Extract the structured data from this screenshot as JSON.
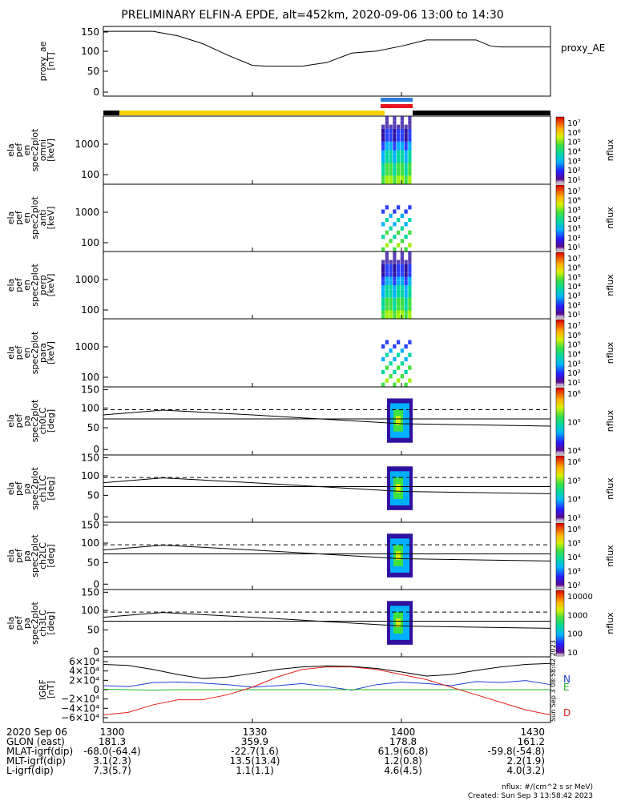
{
  "title": "PRELIMINARY ELFIN-A EPDE, alt=452km, 2020-09-06 13:00 to 14:30",
  "colors": {
    "line": "#000000",
    "bar_yellow": "#f5d200",
    "bar_black": "#000000",
    "bar_blue": "#2b7fd9",
    "bar_red": "#e8141e",
    "grf_n": "#1f3fd0",
    "grf_e": "#20b020",
    "grf_d": "#e0201a"
  },
  "chart_data": [
    {
      "id": "proxy_ae",
      "type": "line",
      "ylabel": [
        "proxy_ae",
        "[nT]"
      ],
      "legend": "proxy_AE",
      "ylim": [
        -10,
        160
      ],
      "yticks": [
        "150",
        "100",
        "50",
        "0"
      ],
      "x_minutes": [
        0,
        5,
        10,
        15,
        20,
        25,
        30,
        33,
        35,
        40,
        45,
        50,
        55,
        60,
        65,
        70,
        75,
        78,
        80,
        85,
        90
      ],
      "values": [
        148,
        148,
        148,
        137,
        118,
        90,
        65,
        63,
        63,
        63,
        72,
        95,
        100,
        112,
        127,
        127,
        127,
        112,
        110,
        110,
        110
      ]
    },
    {
      "id": "ela_pef_en_omni",
      "type": "heatmap",
      "ylabel": [
        "ela",
        "pef",
        "en",
        "spec2plot",
        "omni",
        "[keV]"
      ],
      "yscale": "log",
      "yticks": [
        "1000",
        "100"
      ],
      "colorbar": {
        "label": "nflux",
        "ticks": [
          "10⁷",
          "10⁶",
          "10⁵",
          "10⁴",
          "10³",
          "10²",
          "10¹"
        ]
      }
    },
    {
      "id": "ela_pef_en_anti",
      "type": "heatmap",
      "ylabel": [
        "ela",
        "pef",
        "en",
        "spec2plot",
        "anti",
        "[keV]"
      ],
      "yscale": "log",
      "yticks": [
        "1000",
        "100"
      ],
      "colorbar": {
        "label": "nflux",
        "ticks": [
          "10⁷",
          "10⁶",
          "10⁵",
          "10⁴",
          "10³",
          "10²",
          "10¹"
        ]
      }
    },
    {
      "id": "ela_pef_en_perp",
      "type": "heatmap",
      "ylabel": [
        "ela",
        "pef",
        "en",
        "spec2plot",
        "perp",
        "[keV]"
      ],
      "yscale": "log",
      "yticks": [
        "1000",
        "100"
      ],
      "colorbar": {
        "label": "nflux",
        "ticks": [
          "10⁷",
          "10⁶",
          "10⁵",
          "10⁴",
          "10³",
          "10²",
          "10¹"
        ]
      }
    },
    {
      "id": "ela_pef_en_para",
      "type": "heatmap",
      "ylabel": [
        "ela",
        "pef",
        "en",
        "spec2plot",
        "para",
        "[keV]"
      ],
      "yscale": "log",
      "yticks": [
        "1000",
        "100"
      ],
      "colorbar": {
        "label": "nflux",
        "ticks": [
          "10⁷",
          "10⁶",
          "10⁵",
          "10⁴",
          "10³",
          "10²",
          "10¹"
        ]
      }
    },
    {
      "id": "ela_pef_pa_ch0LC",
      "type": "heatmap",
      "ylabel": [
        "ela",
        "pef",
        "pa",
        "spec2plot",
        "ch0LC",
        "[deg]"
      ],
      "yticks": [
        "150",
        "100",
        "50",
        "0"
      ],
      "colorbar": {
        "label": "nflux",
        "ticks": [
          "10⁶",
          "10⁵",
          "10⁴"
        ]
      }
    },
    {
      "id": "ela_pef_pa_ch1LC",
      "type": "heatmap",
      "ylabel": [
        "ela",
        "pef",
        "pa",
        "spec2plot",
        "ch1LC",
        "[deg]"
      ],
      "yticks": [
        "150",
        "100",
        "50",
        "0"
      ],
      "colorbar": {
        "label": "nflux",
        "ticks": [
          "10⁶",
          "10⁵",
          "10⁴",
          "10³"
        ]
      }
    },
    {
      "id": "ela_pef_pa_ch2LC",
      "type": "heatmap",
      "ylabel": [
        "ela",
        "pef",
        "pa",
        "spec2plot",
        "ch2LC",
        "[deg]"
      ],
      "yticks": [
        "150",
        "100",
        "50",
        "0"
      ],
      "colorbar": {
        "label": "nflux",
        "ticks": [
          "10⁶",
          "10⁵",
          "10⁴",
          "10³",
          "10²"
        ]
      }
    },
    {
      "id": "ela_pef_pa_ch3LC",
      "type": "heatmap",
      "ylabel": [
        "ela",
        "pef",
        "pa",
        "spec2plot",
        "ch3LC",
        "[deg]"
      ],
      "yticks": [
        "150",
        "100",
        "50",
        "0"
      ],
      "colorbar": {
        "label": "nflux",
        "ticks": [
          "10000",
          "1000",
          "100",
          "10"
        ]
      }
    },
    {
      "id": "igrf",
      "type": "line",
      "ylabel": [
        "IGRF",
        "[nT]"
      ],
      "ylim": [
        -65000,
        65000
      ],
      "yticks": [
        "6×10⁴",
        "4×10⁴",
        "2×10⁴",
        "0",
        "−2×10⁴",
        "−4×10⁴",
        "−6×10⁴"
      ],
      "x_minutes": [
        0,
        5,
        10,
        15,
        20,
        25,
        30,
        35,
        40,
        45,
        50,
        55,
        60,
        65,
        70,
        75,
        80,
        85,
        90
      ],
      "series": [
        {
          "name": "N",
          "values": [
            8000,
            6000,
            14000,
            15000,
            13000,
            10000,
            5000,
            8000,
            12000,
            6000,
            -1000,
            10000,
            15000,
            12000,
            8000,
            16000,
            14000,
            18000,
            10000
          ]
        },
        {
          "name": "E",
          "values": [
            1000,
            0,
            -1000,
            0,
            0,
            0,
            0,
            0,
            0,
            0,
            0,
            0,
            0,
            0,
            0,
            0,
            0,
            0,
            0
          ]
        },
        {
          "name": "D",
          "values": [
            -50000,
            -45000,
            -30000,
            -20000,
            -20000,
            -10000,
            5000,
            25000,
            40000,
            45000,
            45000,
            40000,
            30000,
            20000,
            5000,
            -10000,
            -25000,
            -40000,
            -50000
          ]
        },
        {
          "name": "",
          "values": [
            50000,
            48000,
            40000,
            30000,
            22000,
            25000,
            32000,
            40000,
            45000,
            47000,
            46000,
            42000,
            35000,
            27000,
            30000,
            38000,
            45000,
            50000,
            52000
          ]
        }
      ],
      "side_text": "Sun Sep  3 08:58:42 2023"
    }
  ],
  "xaxis": {
    "ticks": [
      "1300",
      "1330",
      "1400",
      "1430"
    ],
    "rows": [
      {
        "label": "2020 Sep 06",
        "values": [
          "",
          "",
          "",
          ""
        ]
      },
      {
        "label": "GLON (east)",
        "values": [
          "181.3",
          "359.9",
          "178.8",
          "161.2"
        ]
      },
      {
        "label": "MLAT-igrf(dip)",
        "values": [
          "-68.0(-64.4)",
          "-22.7(1.6)",
          "61.9(60.8)",
          "-59.8(-54.8)"
        ]
      },
      {
        "label": "MLT-igrf(dip)",
        "values": [
          "3.1(2.3)",
          "13.5(13.4)",
          "1.2(0.8)",
          "2.2(1.9)"
        ]
      },
      {
        "label": "L-igrf(dip)",
        "values": [
          "7.3(5.7)",
          "1.1(1.1)",
          "4.6(4.5)",
          "4.0(3.2)"
        ]
      }
    ]
  },
  "footer": {
    "units": "nflux: #/(cm^2 s sr MeV)",
    "created": "Created: Sun Sep  3 13:58:42 2023"
  }
}
